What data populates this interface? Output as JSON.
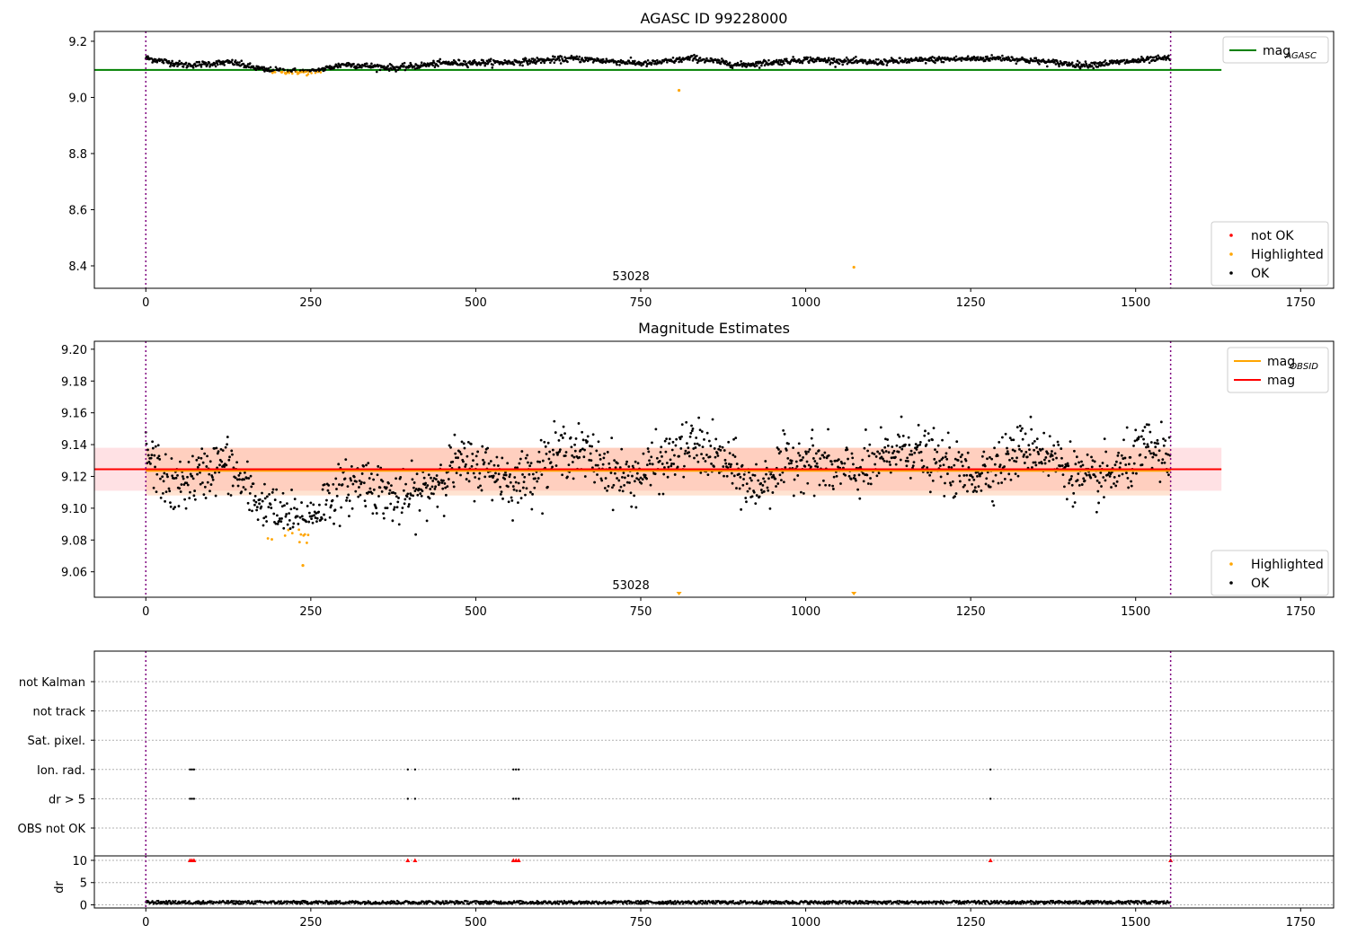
{
  "figure": {
    "width": 1500,
    "height": 1050
  },
  "colors": {
    "ok": "#000000",
    "highlighted": "#ffa500",
    "not_ok": "#ff0000",
    "agasc_line": "#008000",
    "obsid_line": "#ffa500",
    "mag_line": "#ff0000",
    "band_red": "#ff9aa6",
    "band_orange": "#ffb07a",
    "vline": "#800080",
    "grid": "#b0b0b0"
  },
  "chart_data": [
    {
      "type": "scatter",
      "title": "AGASC ID 99228000",
      "xlim": [
        -78,
        1800
      ],
      "ylim": [
        8.32,
        9.235
      ],
      "xticks": [
        0,
        250,
        500,
        750,
        1000,
        1250,
        1500,
        1750
      ],
      "yticks": [
        8.4,
        8.6,
        8.8,
        9.0,
        9.2
      ],
      "ytick_labels": [
        "8.4",
        "8.6",
        "8.8",
        "9.0",
        "9.2"
      ],
      "vlines": [
        0,
        1553
      ],
      "annotation": {
        "text": "53028",
        "x": 776
      },
      "hline": {
        "name": "mag_AGASC",
        "y": 9.098,
        "x_range": [
          -78,
          1630
        ]
      },
      "trend": [
        [
          0,
          9.14
        ],
        [
          60,
          9.115
        ],
        [
          130,
          9.125
        ],
        [
          180,
          9.098
        ],
        [
          250,
          9.09
        ],
        [
          300,
          9.118
        ],
        [
          380,
          9.105
        ],
        [
          450,
          9.122
        ],
        [
          550,
          9.125
        ],
        [
          650,
          9.138
        ],
        [
          760,
          9.12
        ],
        [
          830,
          9.14
        ],
        [
          900,
          9.115
        ],
        [
          1000,
          9.135
        ],
        [
          1100,
          9.125
        ],
        [
          1200,
          9.135
        ],
        [
          1300,
          9.14
        ],
        [
          1420,
          9.115
        ],
        [
          1553,
          9.14
        ]
      ],
      "n_points": 1553,
      "scatter_spread": 0.012,
      "highlighted_range": [
        175,
        265
      ],
      "highlighted_points": [
        [
          808,
          9.025
        ],
        [
          1073,
          8.395
        ]
      ],
      "legend": [
        {
          "label": "mag",
          "sub": "AGASC",
          "kind": "line",
          "color": "#008000"
        },
        {
          "label": "not OK",
          "kind": "dot",
          "color": "#ff0000"
        },
        {
          "label": "Highlighted",
          "kind": "dot",
          "color": "#ffa500"
        },
        {
          "label": "OK",
          "kind": "dot",
          "color": "#000000"
        }
      ]
    },
    {
      "type": "scatter",
      "title": "Magnitude Estimates",
      "xlim": [
        -78,
        1800
      ],
      "ylim": [
        9.044,
        9.205
      ],
      "xticks": [
        0,
        250,
        500,
        750,
        1000,
        1250,
        1500,
        1750
      ],
      "yticks": [
        9.06,
        9.08,
        9.1,
        9.12,
        9.14,
        9.16,
        9.18,
        9.2
      ],
      "ytick_labels": [
        "9.06",
        "9.08",
        "9.10",
        "9.12",
        "9.14",
        "9.16",
        "9.18",
        "9.20"
      ],
      "vlines": [
        0,
        1553
      ],
      "annotation": {
        "text": "53028",
        "x": 776
      },
      "mag_line": {
        "y": 9.1245,
        "band": [
          9.111,
          9.138
        ],
        "x_range": [
          -78,
          1630
        ]
      },
      "obsid_line": {
        "y": 9.1235,
        "band": [
          9.108,
          9.138
        ],
        "x_range": [
          0,
          1553
        ]
      },
      "trend": [
        [
          0,
          9.135
        ],
        [
          40,
          9.112
        ],
        [
          80,
          9.12
        ],
        [
          120,
          9.13
        ],
        [
          160,
          9.108
        ],
        [
          200,
          9.095
        ],
        [
          240,
          9.09
        ],
        [
          280,
          9.108
        ],
        [
          330,
          9.118
        ],
        [
          380,
          9.105
        ],
        [
          420,
          9.11
        ],
        [
          470,
          9.128
        ],
        [
          520,
          9.125
        ],
        [
          560,
          9.115
        ],
        [
          600,
          9.128
        ],
        [
          640,
          9.138
        ],
        [
          690,
          9.128
        ],
        [
          730,
          9.118
        ],
        [
          780,
          9.128
        ],
        [
          830,
          9.14
        ],
        [
          880,
          9.128
        ],
        [
          920,
          9.112
        ],
        [
          960,
          9.125
        ],
        [
          1000,
          9.132
        ],
        [
          1050,
          9.122
        ],
        [
          1100,
          9.125
        ],
        [
          1150,
          9.14
        ],
        [
          1200,
          9.128
        ],
        [
          1250,
          9.12
        ],
        [
          1300,
          9.13
        ],
        [
          1340,
          9.14
        ],
        [
          1380,
          9.13
        ],
        [
          1430,
          9.115
        ],
        [
          1480,
          9.125
        ],
        [
          1520,
          9.138
        ],
        [
          1553,
          9.128
        ]
      ],
      "n_points": 1553,
      "scatter_spread": 0.012,
      "highlighted_range": [
        175,
        265
      ],
      "highlighted_low_markers": [
        808,
        1073
      ],
      "legend": [
        {
          "label": "mag",
          "sub": "OBSID",
          "kind": "line",
          "color": "#ffa500"
        },
        {
          "label": "mag",
          "kind": "line",
          "color": "#ff0000"
        }
      ],
      "legend2": [
        {
          "label": "Highlighted",
          "kind": "dot",
          "color": "#ffa500"
        },
        {
          "label": "OK",
          "kind": "dot",
          "color": "#000000"
        }
      ]
    },
    {
      "type": "scatter",
      "title": "",
      "xlim": [
        -78,
        1800
      ],
      "xticks": [
        0,
        250,
        500,
        750,
        1000,
        1250,
        1500,
        1750
      ],
      "vlines": [
        0,
        1553
      ],
      "flag_categories": [
        "not Kalman",
        "not track",
        "Sat. pixel.",
        "Ion. rad.",
        "dr > 5",
        "OBS not OK"
      ],
      "flag_points": {
        "Ion. rad.": [
          67,
          70,
          73,
          397,
          408,
          557,
          561,
          565,
          1280
        ],
        "dr > 5": [
          67,
          70,
          73,
          397,
          408,
          557,
          561,
          565,
          1280
        ]
      },
      "dr": {
        "ylabel": "dr",
        "ylim": [
          -0.7,
          11
        ],
        "yticks": [
          0,
          5,
          10
        ],
        "ytick_labels": [
          "0",
          "5",
          "10"
        ],
        "clip_markers_x": [
          67,
          70,
          73,
          397,
          408,
          557,
          561,
          565,
          1280,
          1553
        ],
        "baseline": [
          0.2,
          0.9
        ]
      }
    }
  ]
}
